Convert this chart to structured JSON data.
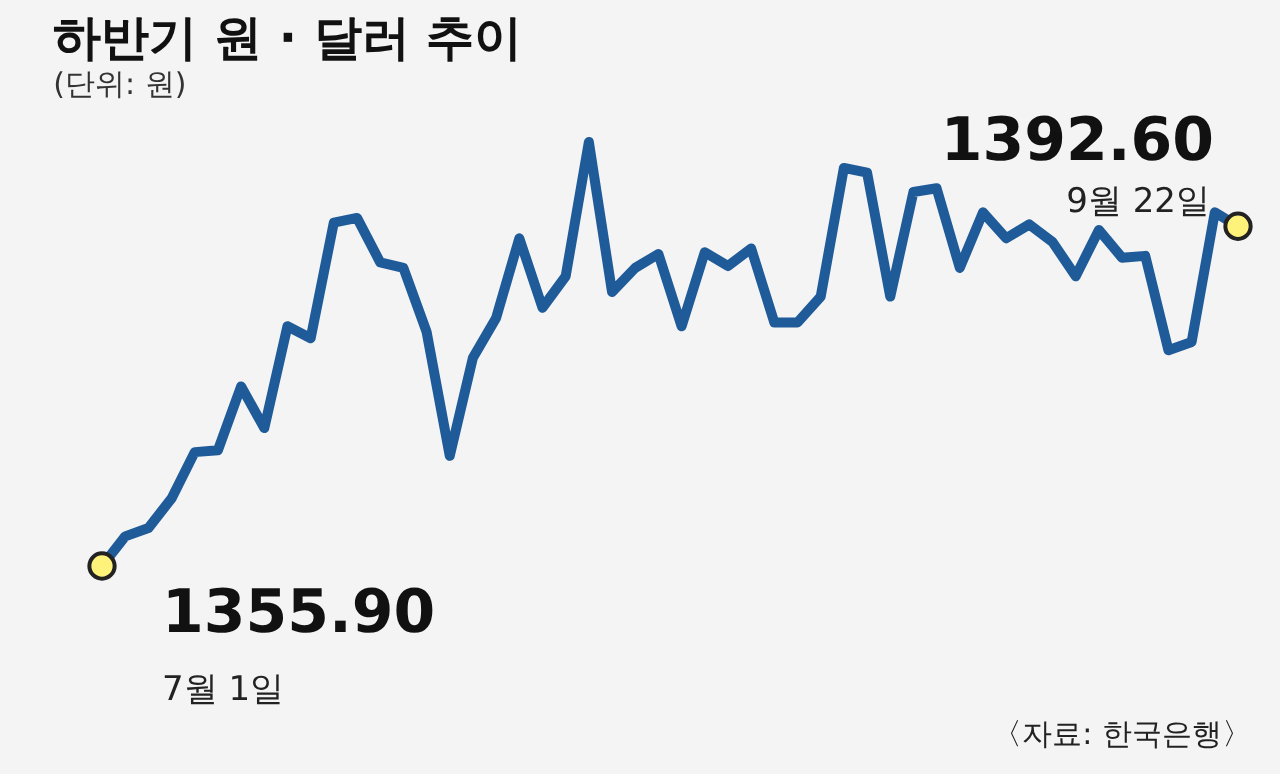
{
  "chart_data": {
    "type": "line",
    "title": "하반기 원 · 달러 추이",
    "subtitle": "(단위: 원)",
    "annotations": [
      "7월 1일",
      "9월 22일",
      "〈자료: 한국은행〉"
    ],
    "categories": [
      null,
      null,
      null,
      null,
      null,
      null,
      null,
      null,
      null,
      null,
      null,
      null,
      null,
      null,
      null,
      null,
      null,
      null,
      null,
      null,
      null,
      null,
      null,
      null,
      null,
      null,
      null,
      null,
      null,
      null,
      null,
      null,
      null,
      null,
      null,
      null,
      null,
      null,
      null,
      null,
      null,
      null,
      null,
      null,
      null,
      null,
      null,
      null,
      null,
      null
    ],
    "series": [
      {
        "color": "#1f5b99",
        "values": [
          1355.9,
          1359.1,
          1360.0,
          1363.2,
          1368.2,
          1368.4,
          1375.3,
          1370.8,
          1381.8,
          1380.5,
          1393.0,
          1393.5,
          1388.7,
          1388.1,
          1381.2,
          1367.8,
          1378.4,
          1382.7,
          1391.3,
          1383.8,
          1387.2,
          1401.7,
          1385.5,
          1388.1,
          1389.6,
          1381.8,
          1389.8,
          1388.3,
          1390.2,
          1382.2,
          1382.2,
          1385.0,
          1398.9,
          1398.4,
          1385.0,
          1396.3,
          1396.7,
          1388.1,
          1394.1,
          1391.3,
          1392.8,
          1390.9,
          1387.2,
          1392.2,
          1389.2,
          1389.4,
          1379.2,
          1380.1,
          1394.1,
          1392.6
        ],
        "value_labels": [
          "1355.90",
          null,
          null,
          null,
          null,
          null,
          null,
          null,
          null,
          null,
          null,
          null,
          null,
          null,
          null,
          null,
          null,
          null,
          null,
          null,
          null,
          null,
          null,
          null,
          null,
          null,
          null,
          null,
          null,
          null,
          null,
          null,
          null,
          null,
          null,
          null,
          null,
          null,
          null,
          null,
          null,
          null,
          null,
          null,
          null,
          null,
          null,
          null,
          null,
          "1392.60"
        ]
      }
    ],
    "marker": "none",
    "line_style": "solid"
  }
}
